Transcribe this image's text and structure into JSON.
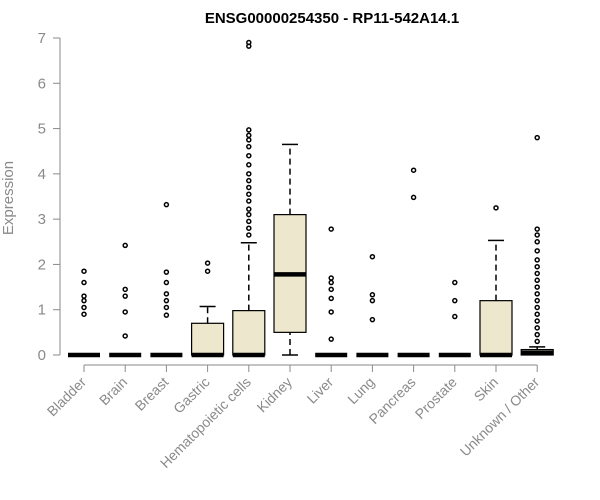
{
  "chart_data": {
    "type": "boxplot",
    "title": "ENSG00000254350 - RP11-542A14.1",
    "xlabel": "",
    "ylabel": "Expression",
    "ylim": [
      0,
      7
    ],
    "yticks": [
      0,
      1,
      2,
      3,
      4,
      5,
      6,
      7
    ],
    "grid": false,
    "colors": {
      "box_fill": "#ede7cd",
      "box_stroke": "#000000",
      "axis": "#8a8a8a",
      "text": "#8a8a8a"
    },
    "categories": [
      "Bladder",
      "Brain",
      "Breast",
      "Gastric",
      "Hematopoietic cells",
      "Kidney",
      "Liver",
      "Lung",
      "Pancreas",
      "Prostate",
      "Skin",
      "Unknown / Other"
    ],
    "boxes": [
      {
        "category": "Bladder",
        "whisker_low": 0,
        "q1": 0,
        "median": 0,
        "q3": 0,
        "whisker_high": 0,
        "outliers": [
          0.9,
          1.05,
          1.2,
          1.3,
          1.6,
          1.85
        ]
      },
      {
        "category": "Brain",
        "whisker_low": 0,
        "q1": 0,
        "median": 0,
        "q3": 0,
        "whisker_high": 0,
        "outliers": [
          0.42,
          0.95,
          1.3,
          1.45,
          2.42
        ]
      },
      {
        "category": "Breast",
        "whisker_low": 0,
        "q1": 0,
        "median": 0,
        "q3": 0,
        "whisker_high": 0,
        "outliers": [
          0.88,
          1.05,
          1.2,
          1.35,
          1.6,
          1.83,
          3.32
        ]
      },
      {
        "category": "Gastric",
        "whisker_low": 0,
        "q1": 0,
        "median": 0,
        "q3": 0.7,
        "whisker_high": 1.07,
        "outliers": [
          1.85,
          2.03
        ]
      },
      {
        "category": "Hematopoietic cells",
        "whisker_low": 0,
        "q1": 0,
        "median": 0,
        "q3": 0.98,
        "whisker_high": 2.48,
        "outliers": [
          2.65,
          2.8,
          2.95,
          3.1,
          3.22,
          3.4,
          3.55,
          3.7,
          3.85,
          4.0,
          4.2,
          4.4,
          4.6,
          4.75,
          4.85,
          4.97,
          6.82,
          6.9
        ]
      },
      {
        "category": "Kidney",
        "whisker_low": 0,
        "q1": 0.5,
        "median": 1.78,
        "q3": 3.1,
        "whisker_high": 4.65,
        "outliers": []
      },
      {
        "category": "Liver",
        "whisker_low": 0,
        "q1": 0,
        "median": 0,
        "q3": 0,
        "whisker_high": 0,
        "outliers": [
          0.35,
          0.95,
          1.25,
          1.45,
          1.6,
          1.7,
          2.78
        ]
      },
      {
        "category": "Lung",
        "whisker_low": 0,
        "q1": 0,
        "median": 0,
        "q3": 0,
        "whisker_high": 0,
        "outliers": [
          0.78,
          1.2,
          1.33,
          2.17
        ]
      },
      {
        "category": "Pancreas",
        "whisker_low": 0,
        "q1": 0,
        "median": 0,
        "q3": 0,
        "whisker_high": 0,
        "outliers": [
          3.48,
          4.08
        ]
      },
      {
        "category": "Prostate",
        "whisker_low": 0,
        "q1": 0,
        "median": 0,
        "q3": 0,
        "whisker_high": 0,
        "outliers": [
          0.85,
          1.2,
          1.6
        ]
      },
      {
        "category": "Skin",
        "whisker_low": 0,
        "q1": 0,
        "median": 0,
        "q3": 1.2,
        "whisker_high": 2.53,
        "outliers": [
          3.25
        ]
      },
      {
        "category": "Unknown / Other",
        "whisker_low": 0,
        "q1": 0,
        "median": 0.05,
        "q3": 0.12,
        "whisker_high": 0.18,
        "outliers": [
          0.3,
          0.45,
          0.6,
          0.75,
          0.9,
          1.05,
          1.2,
          1.35,
          1.5,
          1.65,
          1.8,
          1.95,
          2.1,
          2.3,
          2.5,
          2.65,
          2.78,
          4.8
        ]
      }
    ]
  }
}
